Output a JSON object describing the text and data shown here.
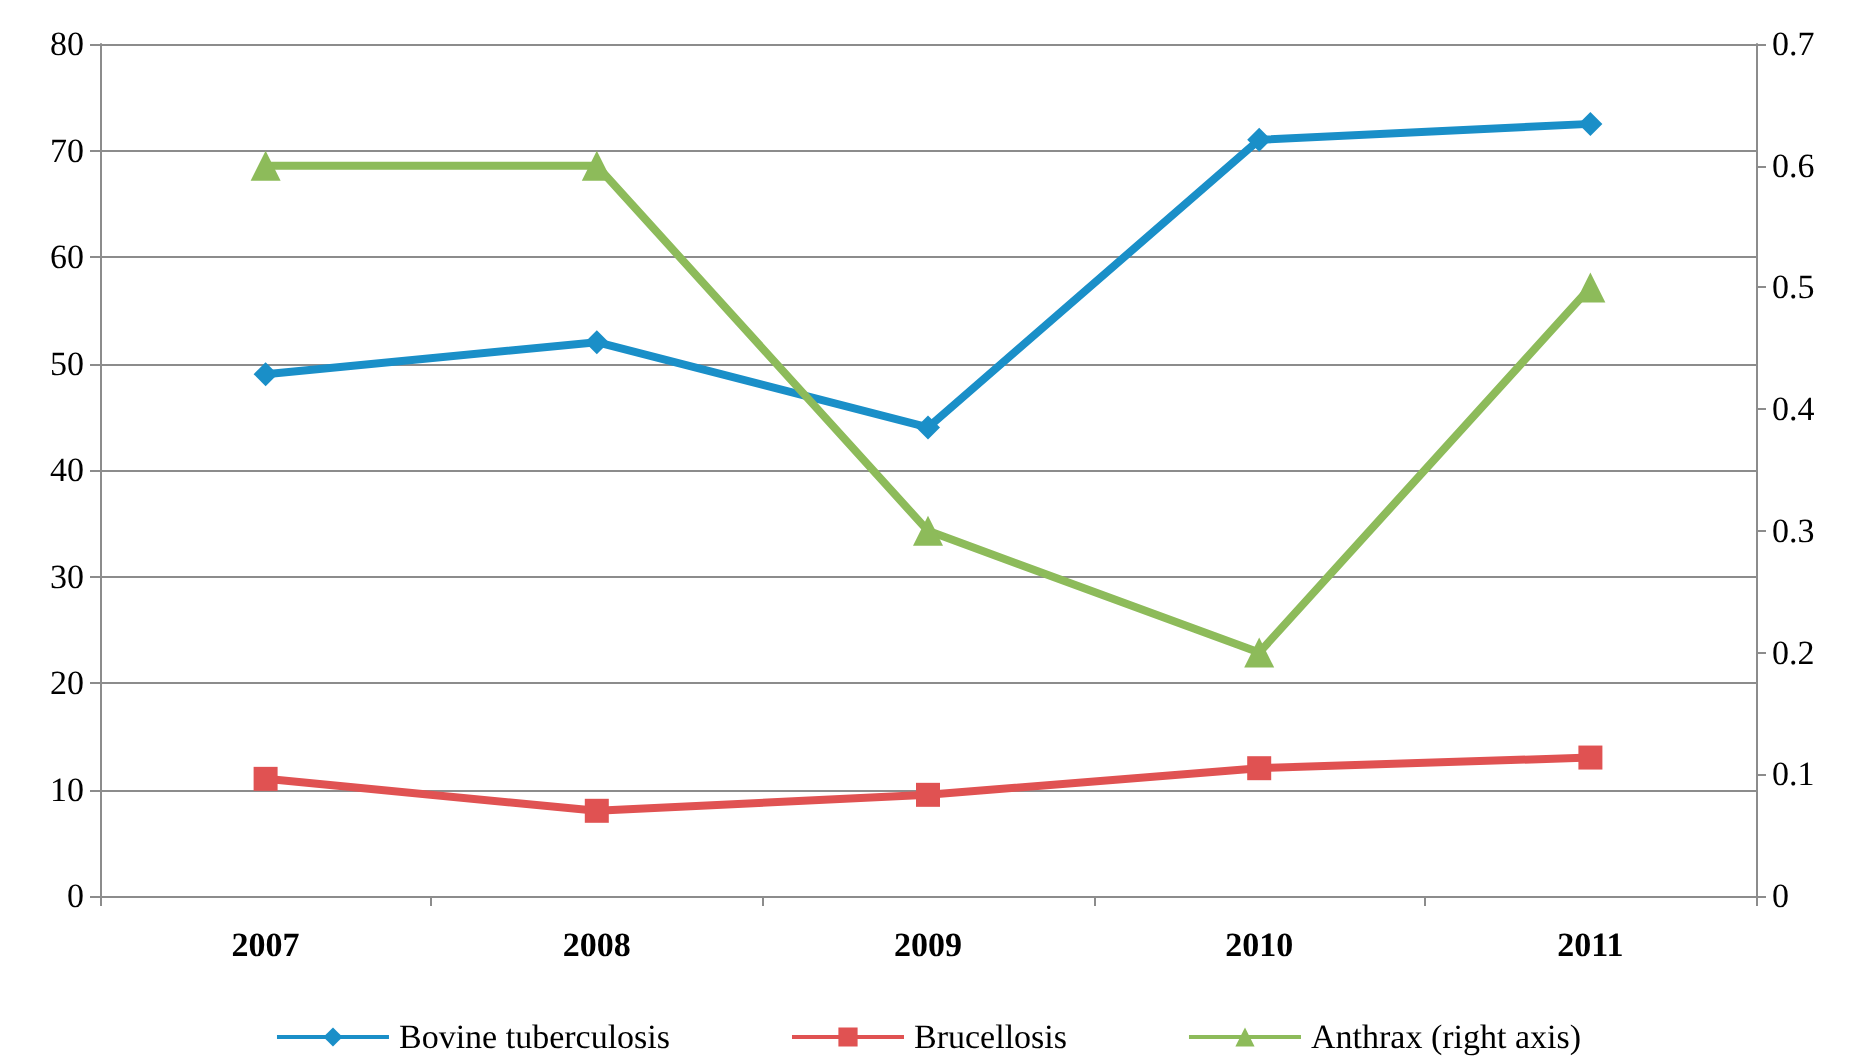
{
  "chart_data": {
    "type": "line",
    "categories": [
      "2007",
      "2008",
      "2009",
      "2010",
      "2011"
    ],
    "series": [
      {
        "name": "Bovine tuberculosis",
        "color": "#1a8fc8",
        "marker": "diamond",
        "values": [
          49,
          52,
          44,
          71,
          72.5
        ]
      },
      {
        "name": "Brucellosis",
        "color": "#e05252",
        "marker": "square",
        "values": [
          11,
          8,
          9.5,
          12,
          13
        ]
      },
      {
        "name": "Anthrax (right axis)",
        "color": "#8dbb5a",
        "marker": "triangle",
        "axis": "y2",
        "values": [
          0.6,
          0.6,
          0.3,
          0.2,
          0.5
        ]
      }
    ],
    "ylim": [
      0,
      80
    ],
    "yticks": [
      0,
      10,
      20,
      30,
      40,
      50,
      60,
      70,
      80
    ],
    "y2lim": [
      0,
      0.7
    ],
    "y2ticks": [
      0,
      0.1,
      0.2,
      0.3,
      0.4,
      0.5,
      0.6,
      0.7
    ],
    "grid": "y",
    "legend": "bottom"
  }
}
